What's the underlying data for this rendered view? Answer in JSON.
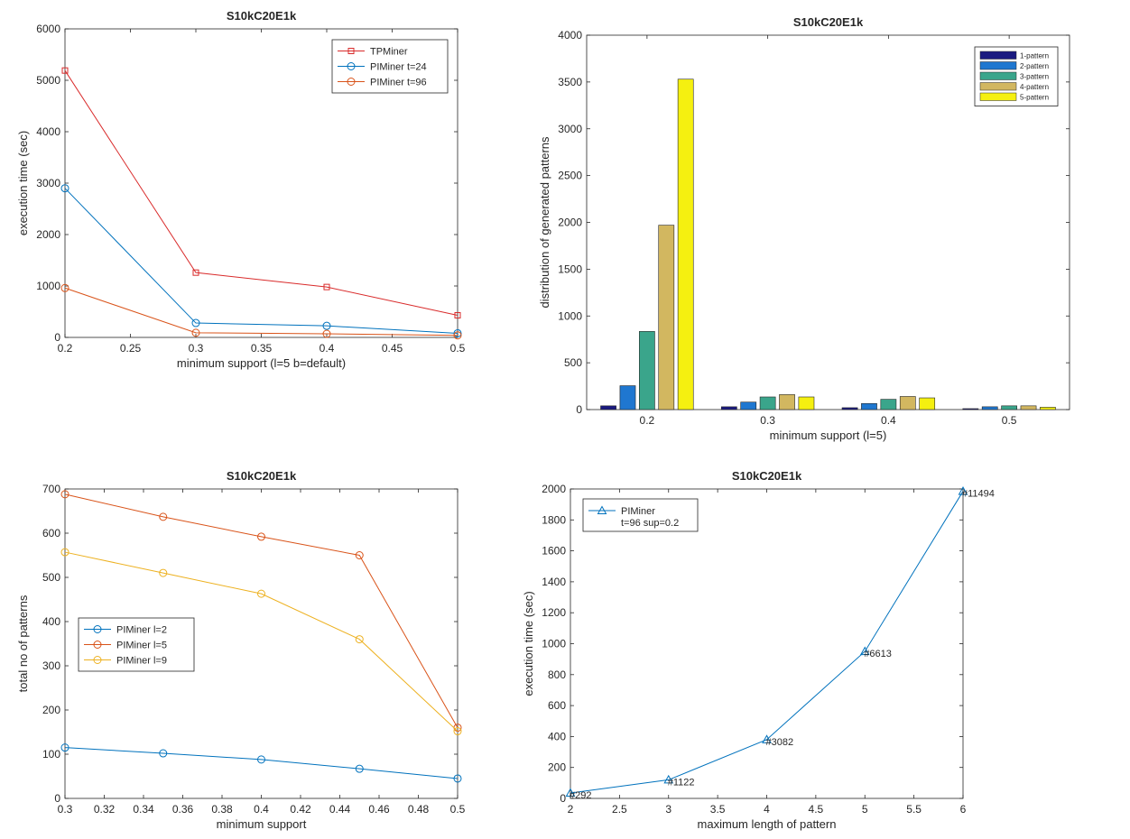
{
  "chart_data": [
    {
      "type": "line",
      "title": "S10kC20E1k",
      "xlabel": "minimum support (l=5 b=default)",
      "ylabel": "execution time (sec)",
      "xlim": [
        0.2,
        0.5
      ],
      "ylim": [
        0,
        6000
      ],
      "xticks": [
        0.2,
        0.25,
        0.3,
        0.35,
        0.4,
        0.45,
        0.5
      ],
      "xtick_labels": [
        "0.2",
        "0.25",
        "0.3",
        "0.35",
        "0.4",
        "0.45",
        "0.5"
      ],
      "yticks": [
        0,
        1000,
        2000,
        3000,
        4000,
        5000,
        6000
      ],
      "ytick_labels": [
        "0",
        "1000",
        "2000",
        "3000",
        "4000",
        "5000",
        "6000"
      ],
      "legend": "top-right",
      "x": [
        0.2,
        0.3,
        0.4,
        0.5
      ],
      "series": [
        {
          "name": "TPMiner",
          "values": [
            5190,
            1260,
            980,
            430
          ],
          "color": "#d92b2b",
          "marker": "square"
        },
        {
          "name": "PIMiner t=24",
          "values": [
            2900,
            280,
            225,
            80
          ],
          "color": "#0072bd",
          "marker": "circle"
        },
        {
          "name": "PIMiner t=96",
          "values": [
            960,
            90,
            70,
            40
          ],
          "color": "#d95319",
          "marker": "circle"
        }
      ]
    },
    {
      "type": "bar",
      "title": "S10kC20E1k",
      "xlabel": "minimum support (l=5)",
      "ylabel": "distribution of generated patterns",
      "ylim": [
        0,
        4000
      ],
      "yticks": [
        0,
        500,
        1000,
        1500,
        2000,
        2500,
        3000,
        3500,
        4000
      ],
      "ytick_labels": [
        "0",
        "500",
        "1000",
        "1500",
        "2000",
        "2500",
        "3000",
        "3500",
        "4000"
      ],
      "legend": "top-right",
      "categories": [
        "0.2",
        "0.3",
        "0.4",
        "0.5"
      ],
      "series": [
        {
          "name": "1-pattern",
          "values": [
            40,
            30,
            20,
            10
          ],
          "color": "#1a1a80"
        },
        {
          "name": "2-pattern",
          "values": [
            255,
            80,
            65,
            30
          ],
          "color": "#1f77d0"
        },
        {
          "name": "3-pattern",
          "values": [
            835,
            135,
            110,
            40
          ],
          "color": "#3aa58b"
        },
        {
          "name": "4-pattern",
          "values": [
            1970,
            160,
            140,
            40
          ],
          "color": "#d2b760"
        },
        {
          "name": "5-pattern",
          "values": [
            3530,
            135,
            125,
            25
          ],
          "color": "#f5f010"
        }
      ]
    },
    {
      "type": "line",
      "title": "S10kC20E1k",
      "xlabel": "minimum support",
      "ylabel": "total no of patterns",
      "xlim": [
        0.3,
        0.5
      ],
      "ylim": [
        0,
        700
      ],
      "xticks": [
        0.3,
        0.32,
        0.34,
        0.36,
        0.38,
        0.4,
        0.42,
        0.44,
        0.46,
        0.48,
        0.5
      ],
      "xtick_labels": [
        "0.3",
        "0.32",
        "0.34",
        "0.36",
        "0.38",
        "0.4",
        "0.42",
        "0.44",
        "0.46",
        "0.48",
        "0.5"
      ],
      "yticks": [
        0,
        100,
        200,
        300,
        400,
        500,
        600,
        700
      ],
      "ytick_labels": [
        "0",
        "100",
        "200",
        "300",
        "400",
        "500",
        "600",
        "700"
      ],
      "legend": "center-left",
      "x": [
        0.3,
        0.35,
        0.4,
        0.45,
        0.5
      ],
      "series": [
        {
          "name": "PIMiner l=2",
          "values": [
            115,
            102,
            88,
            67,
            45
          ],
          "color": "#0072bd",
          "marker": "circle"
        },
        {
          "name": "PIMiner l=5",
          "values": [
            688,
            637,
            592,
            550,
            160
          ],
          "color": "#d95319",
          "marker": "circle"
        },
        {
          "name": "PIMiner l=9",
          "values": [
            557,
            510,
            463,
            360,
            152
          ],
          "color": "#edb120",
          "marker": "circle"
        }
      ]
    },
    {
      "type": "line",
      "title": "S10kC20E1k",
      "xlabel": "maximum length of pattern",
      "ylabel": "execution time (sec)",
      "xlim": [
        2,
        6
      ],
      "ylim": [
        0,
        2000
      ],
      "xticks": [
        2,
        2.5,
        3,
        3.5,
        4,
        4.5,
        5,
        5.5,
        6
      ],
      "xtick_labels": [
        "2",
        "2.5",
        "3",
        "3.5",
        "4",
        "4.5",
        "5",
        "5.5",
        "6"
      ],
      "yticks": [
        0,
        200,
        400,
        600,
        800,
        1000,
        1200,
        1400,
        1600,
        1800,
        2000
      ],
      "ytick_labels": [
        "0",
        "200",
        "400",
        "600",
        "800",
        "1000",
        "1200",
        "1400",
        "1600",
        "1800",
        "2000"
      ],
      "legend": "top-left",
      "x": [
        2,
        3,
        4,
        5,
        6
      ],
      "series": [
        {
          "name": "PIMiner",
          "name_line2": "t=96 sup=0.2",
          "values": [
            35,
            120,
            380,
            950,
            1985
          ],
          "color": "#0072bd",
          "marker": "triangle"
        }
      ],
      "annotations": [
        "#292",
        "#1122",
        "#3082",
        "#6613",
        "#11494"
      ]
    }
  ]
}
